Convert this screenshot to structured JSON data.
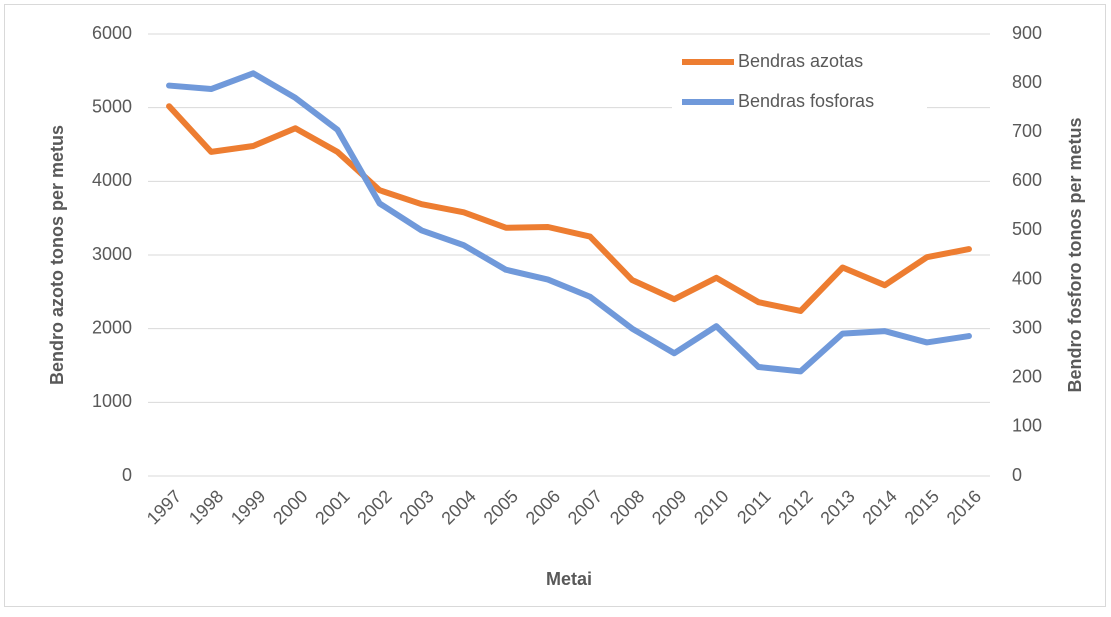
{
  "chart_data": {
    "type": "line",
    "x_label": "Metai",
    "y_label": "Bendro azoto tonos per metus",
    "y2_label": "Bendro fosforo tonos per metus",
    "categories": [
      "1997",
      "1998",
      "1999",
      "2000",
      "2001",
      "2002",
      "2003",
      "2004",
      "2005",
      "2006",
      "2007",
      "2008",
      "2009",
      "2010",
      "2011",
      "2012",
      "2013",
      "2014",
      "2015",
      "2016"
    ],
    "series": [
      {
        "name": "Bendras azotas",
        "color": "#ed7d31",
        "axis": "y",
        "values": [
          5020,
          4400,
          4480,
          4720,
          4400,
          3880,
          3690,
          3580,
          3370,
          3380,
          3250,
          2660,
          2400,
          2690,
          2360,
          2240,
          2830,
          2590,
          2970,
          3080
        ]
      },
      {
        "name": "Bendras fosforas",
        "color": "#7099da",
        "axis": "y2",
        "values": [
          795,
          788,
          820,
          770,
          705,
          555,
          500,
          470,
          420,
          400,
          365,
          300,
          250,
          305,
          222,
          213,
          290,
          295,
          272,
          285
        ]
      }
    ],
    "ylim": [
      0,
      6000
    ],
    "yticks": [
      0,
      1000,
      2000,
      3000,
      4000,
      5000,
      6000
    ],
    "y2lim": [
      0,
      900
    ],
    "y2ticks": [
      0,
      100,
      200,
      300,
      400,
      500,
      600,
      700,
      800,
      900
    ],
    "grid": true,
    "legend": "upper right"
  }
}
